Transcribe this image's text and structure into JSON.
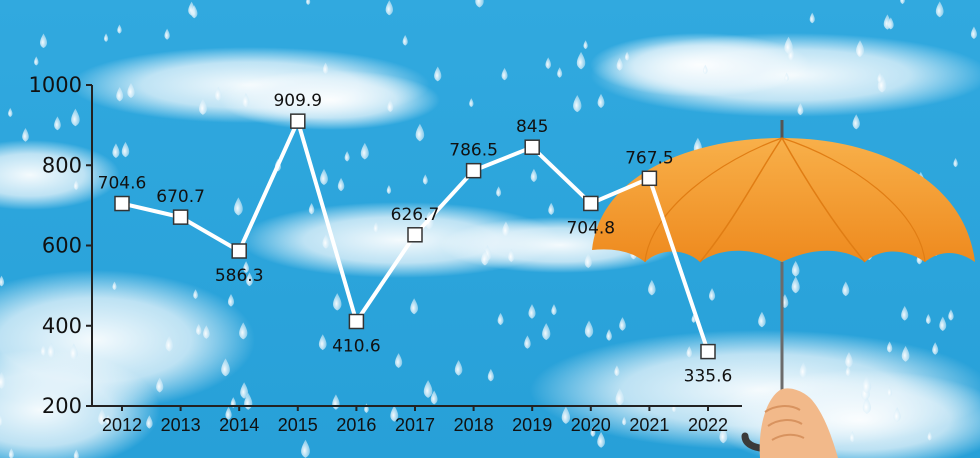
{
  "chart_data": {
    "type": "line",
    "title": "",
    "xlabel": "",
    "ylabel": "",
    "categories": [
      "2012",
      "2013",
      "2014",
      "2015",
      "2016",
      "2017",
      "2018",
      "2019",
      "2020",
      "2021",
      "2022"
    ],
    "values": [
      704.6,
      670.7,
      586.3,
      909.9,
      410.6,
      626.7,
      786.5,
      845,
      704.8,
      767.5,
      335.6
    ],
    "value_labels": [
      "704.6",
      "670.7",
      "586.3",
      "909.9",
      "410.6",
      "626.7",
      "786.5",
      "845",
      "704.8",
      "767.5",
      "335.6"
    ],
    "ylim": [
      200,
      1000
    ],
    "yticks": [
      "200",
      "400",
      "600",
      "800",
      "1000"
    ],
    "grid": false,
    "line_color": "#ffffff",
    "marker": "square"
  },
  "background": {
    "sky_color": "#2ea6dc",
    "umbrella_color": "#f59a2e",
    "decoration": [
      "raindrops",
      "clouds",
      "umbrella",
      "hand"
    ]
  }
}
